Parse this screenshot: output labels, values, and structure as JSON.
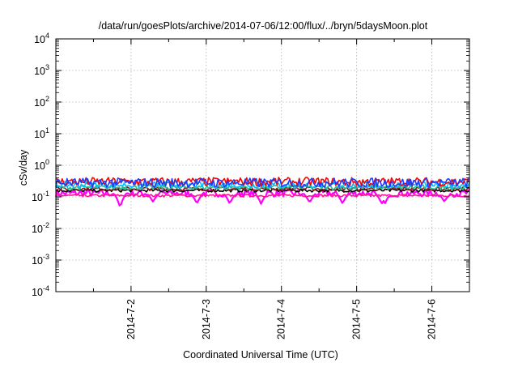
{
  "chart_data": {
    "type": "line",
    "title": "/data/run/goesPlots/archive/2014-07-06/12:00/flux/../bryn/5daysMoon.plot",
    "xlabel": "Coordinated Universal Time (UTC)",
    "ylabel": "cSv/day",
    "y_scale": "log",
    "ylim": [
      0.0001,
      10000
    ],
    "y_ticks": [
      {
        "base": "10",
        "exp": "-4",
        "value": 0.0001
      },
      {
        "base": "10",
        "exp": "-3",
        "value": 0.001
      },
      {
        "base": "10",
        "exp": "-2",
        "value": 0.01
      },
      {
        "base": "10",
        "exp": "-1",
        "value": 0.1
      },
      {
        "base": "10",
        "exp": "0",
        "value": 1
      },
      {
        "base": "10",
        "exp": "1",
        "value": 10
      },
      {
        "base": "10",
        "exp": "2",
        "value": 100
      },
      {
        "base": "10",
        "exp": "3",
        "value": 1000
      },
      {
        "base": "10",
        "exp": "4",
        "value": 10000
      }
    ],
    "xlim": [
      "2014-07-01T00:00",
      "2014-07-06T12:00"
    ],
    "x_ticks": [
      {
        "label": "2014-7-2",
        "value": "2014-07-02"
      },
      {
        "label": "2014-7-3",
        "value": "2014-07-03"
      },
      {
        "label": "2014-7-4",
        "value": "2014-07-04"
      },
      {
        "label": "2014-7-5",
        "value": "2014-07-05"
      },
      {
        "label": "2014-7-6",
        "value": "2014-07-06"
      }
    ],
    "grid": true,
    "legend": "none",
    "series": [
      {
        "color": "#ff00ff",
        "level": 0.13,
        "spread": 0.22,
        "dips": [
          {
            "x": "2014-07-01T20:30",
            "y": 0.045
          },
          {
            "x": "2014-07-02T07:00",
            "y": 0.07
          },
          {
            "x": "2014-07-02T21:00",
            "y": 0.06
          },
          {
            "x": "2014-07-03T07:30",
            "y": 0.06
          },
          {
            "x": "2014-07-03T17:30",
            "y": 0.06
          },
          {
            "x": "2014-07-04T09:00",
            "y": 0.065
          },
          {
            "x": "2014-07-04T19:30",
            "y": 0.06
          },
          {
            "x": "2014-07-05T08:00",
            "y": 0.06
          },
          {
            "x": "2014-07-05T09:00",
            "y": 0.06
          },
          {
            "x": "2014-07-06T04:00",
            "y": 0.07
          }
        ]
      },
      {
        "color": "#ff1493",
        "level": 0.11,
        "spread": 0.08,
        "dips": []
      },
      {
        "color": "#000000",
        "level": 0.16,
        "spread": 0.1,
        "dips": []
      },
      {
        "color": "#8b1a1a",
        "level": 0.18,
        "spread": 0.12,
        "dips": []
      },
      {
        "color": "#20c090",
        "level": 0.2,
        "spread": 0.15,
        "dips": []
      },
      {
        "color": "#00bfff",
        "level": 0.24,
        "spread": 0.2,
        "dips": []
      },
      {
        "color": "#ff0000",
        "level": 0.3,
        "spread": 0.28,
        "dips": []
      },
      {
        "color": "#1e3cff",
        "level": 0.28,
        "spread": 0.3,
        "dips": []
      }
    ]
  }
}
